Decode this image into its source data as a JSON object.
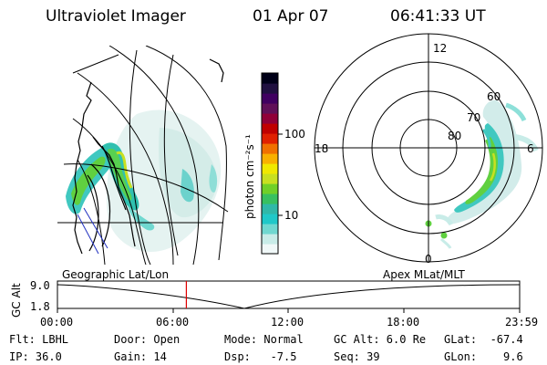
{
  "header": {
    "title": "Ultraviolet Imager",
    "date": "01 Apr 07",
    "time": "06:41:33 UT"
  },
  "colorbar": {
    "unit_label": "photon cm⁻²s⁻¹",
    "ticks": [
      "100",
      "10"
    ],
    "colors": [
      "#f0f8f8",
      "#c8ece8",
      "#70d8d0",
      "#20c8c8",
      "#30b8a8",
      "#38c060",
      "#70d028",
      "#c8e020",
      "#f0e800",
      "#f8b000",
      "#f07000",
      "#e02000",
      "#c00000",
      "#900038",
      "#601058",
      "#400060",
      "#201040",
      "#000018"
    ]
  },
  "polar": {
    "mlt_labels": [
      "12",
      "18",
      "6",
      "0"
    ],
    "lat_labels": [
      "60",
      "70",
      "80"
    ]
  },
  "timeline": {
    "left_label": "Geographic Lat/Lon",
    "right_label": "Apex MLat/MLT",
    "axis_title": "GC Alt",
    "y_top": "9.0",
    "y_bottom": "1.8",
    "x_ticks": [
      "00:00",
      "06:00",
      "12:00",
      "18:00",
      "23:59"
    ],
    "current_time_fraction": 0.2788
  },
  "info": {
    "flt": "Flt: LBHL",
    "ip": "IP: 36.0",
    "door": "Door: Open",
    "gain": "Gain: 14",
    "mode": "Mode: Normal",
    "dsp": "Dsp:   -7.5",
    "gcalt": "GC Alt: 6.0 Re",
    "seq": "Seq: 39",
    "glat": "GLat:  -67.4",
    "glon": "GLon:    9.6"
  }
}
